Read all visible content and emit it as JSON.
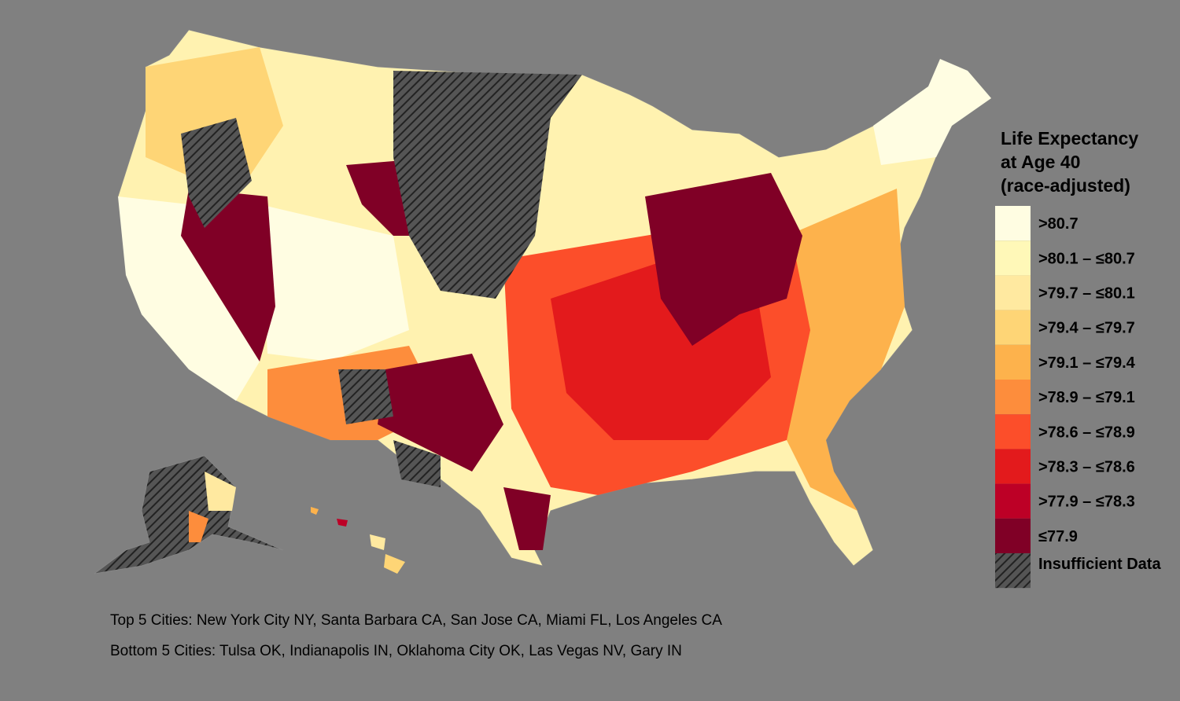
{
  "legend": {
    "title": [
      "Life Expectancy",
      "at Age 40",
      "(race-adjusted)"
    ],
    "items": [
      {
        "label": ">80.7",
        "color": "#fffde2"
      },
      {
        "label": ">80.1 – ≤80.7",
        "color": "#fff8b8"
      },
      {
        "label": ">79.7 – ≤80.1",
        "color": "#ffe9a0"
      },
      {
        "label": ">79.4 – ≤79.7",
        "color": "#fed576"
      },
      {
        "label": ">79.1 – ≤79.4",
        "color": "#fdb24c"
      },
      {
        "label": ">78.9 – ≤79.1",
        "color": "#fd8d3c"
      },
      {
        "label": ">78.6 – ≤78.9",
        "color": "#fc4e2a"
      },
      {
        "label": ">78.3 – ≤78.6",
        "color": "#e31a1c"
      },
      {
        "label": ">77.9 – ≤78.3",
        "color": "#bd0026"
      },
      {
        "label": "≤77.9",
        "color": "#800026"
      }
    ],
    "insufficient": "Insufficient Data"
  },
  "notes": [
    "Top 5 Cities: New York City NY, Santa Barbara CA, San Jose CA, Miami FL, Los Angeles CA",
    "Bottom 5 Cities: Tulsa OK, Indianapolis IN, Oklahoma City OK, Las Vegas NV, Gary IN"
  ]
}
